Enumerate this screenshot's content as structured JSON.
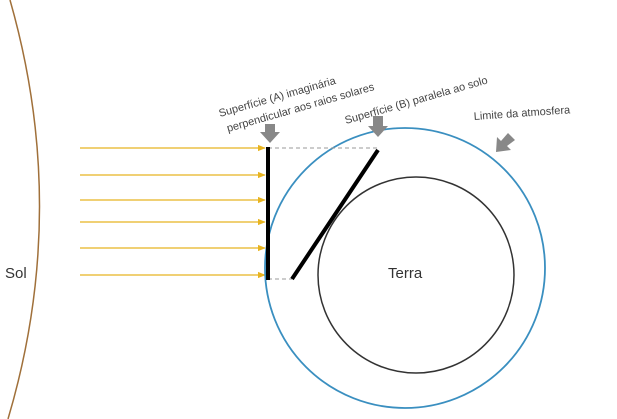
{
  "labels": {
    "sun": "Sol",
    "earth": "Terra",
    "surface_a_line1": "Superfície (A) imaginária",
    "surface_a_line2": "perpendicular aos raios solares",
    "surface_b": "Superfície (B) paralela ao solo",
    "atmosphere": "Limite da atmosfera"
  }
}
